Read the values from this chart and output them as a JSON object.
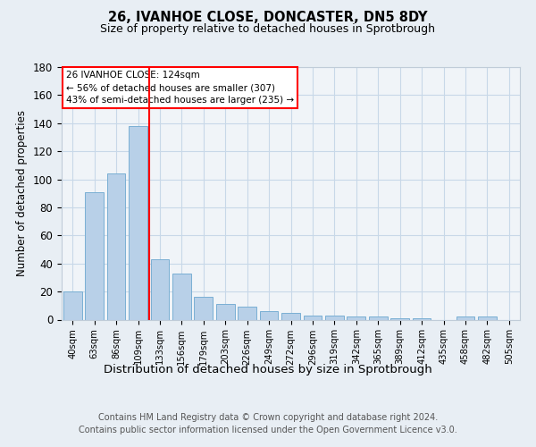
{
  "title1": "26, IVANHOE CLOSE, DONCASTER, DN5 8DY",
  "title2": "Size of property relative to detached houses in Sprotbrough",
  "xlabel": "Distribution of detached houses by size in Sprotbrough",
  "ylabel": "Number of detached properties",
  "categories": [
    "40sqm",
    "63sqm",
    "86sqm",
    "109sqm",
    "133sqm",
    "156sqm",
    "179sqm",
    "203sqm",
    "226sqm",
    "249sqm",
    "272sqm",
    "296sqm",
    "319sqm",
    "342sqm",
    "365sqm",
    "389sqm",
    "412sqm",
    "435sqm",
    "458sqm",
    "482sqm",
    "505sqm"
  ],
  "values": [
    20,
    91,
    104,
    138,
    43,
    33,
    16,
    11,
    9,
    6,
    5,
    3,
    3,
    2,
    2,
    1,
    1,
    0,
    2,
    2,
    0
  ],
  "bar_color": "#b8d0e8",
  "bar_edgecolor": "#7aafd4",
  "redline_x": 3.5,
  "annotation_title": "26 IVANHOE CLOSE: 124sqm",
  "annotation_line1": "← 56% of detached houses are smaller (307)",
  "annotation_line2": "43% of semi-detached houses are larger (235) →",
  "ylim": [
    0,
    180
  ],
  "yticks": [
    0,
    20,
    40,
    60,
    80,
    100,
    120,
    140,
    160,
    180
  ],
  "footer1": "Contains HM Land Registry data © Crown copyright and database right 2024.",
  "footer2": "Contains public sector information licensed under the Open Government Licence v3.0.",
  "bg_color": "#e8eef4",
  "plot_bg_color": "#f0f4f8"
}
